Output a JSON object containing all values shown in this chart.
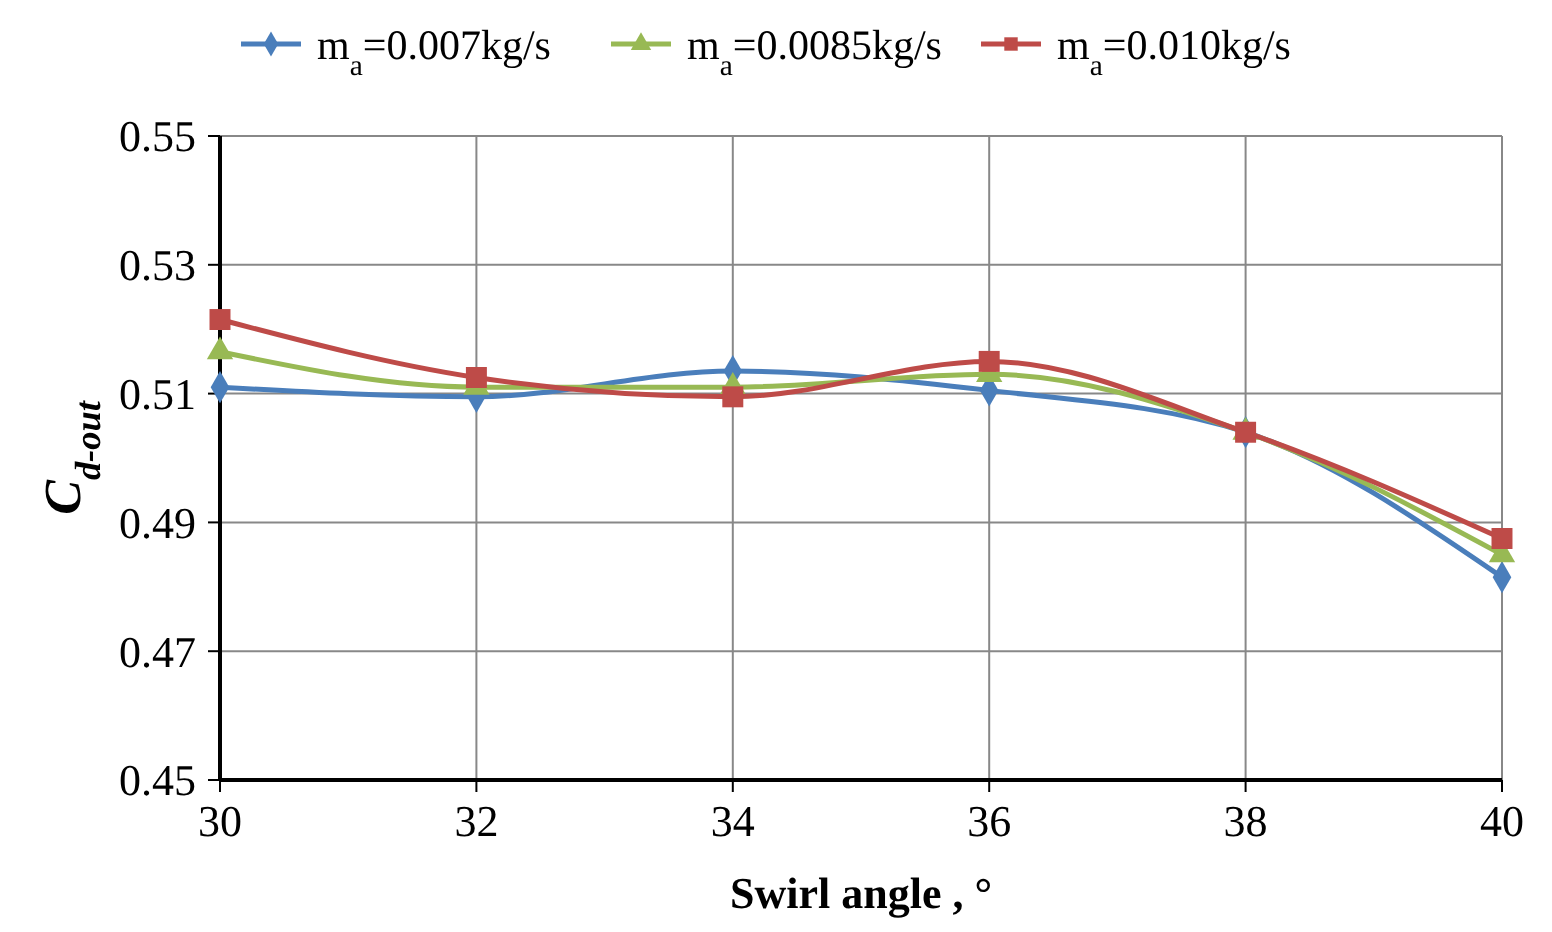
{
  "chart_data": {
    "type": "line",
    "xlabel": "Swirl angle , °",
    "ylabel": "C$_{d-out}$",
    "x": [
      30,
      32,
      34,
      36,
      38,
      40
    ],
    "xlim": [
      30,
      40
    ],
    "xticks": [
      30,
      32,
      34,
      36,
      38,
      40
    ],
    "ylim": [
      0.45,
      0.55
    ],
    "yticks": [
      0.45,
      0.47,
      0.49,
      0.51,
      0.53,
      0.55
    ],
    "grid": true,
    "legend": "top",
    "series": [
      {
        "name": "m$_{a}$=0.007kg/s",
        "color": "#4a7ebb",
        "marker": "diamond",
        "values": [
          0.511,
          0.5095,
          0.5135,
          0.5105,
          0.504,
          0.4815
        ]
      },
      {
        "name": "m$_{a}$=0.0085kg/s",
        "color": "#98b954",
        "marker": "triangle",
        "values": [
          0.5165,
          0.511,
          0.511,
          0.513,
          0.504,
          0.485
        ]
      },
      {
        "name": "m$_{a}$=0.010kg/s",
        "color": "#be4b48",
        "marker": "square",
        "values": [
          0.5215,
          0.5125,
          0.5095,
          0.515,
          0.504,
          0.4875
        ]
      }
    ]
  }
}
